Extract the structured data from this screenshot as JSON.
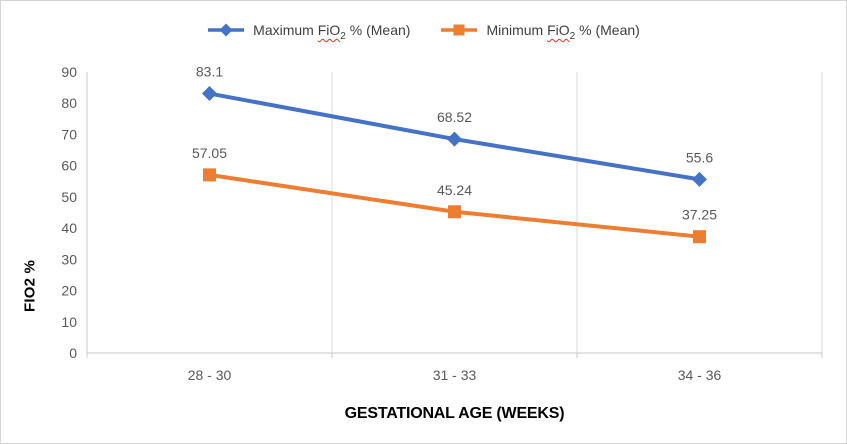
{
  "chart_data": {
    "type": "line",
    "title": "",
    "categories": [
      "28 - 30",
      "31 - 33",
      "34 - 36"
    ],
    "series": [
      {
        "name": "Maximum FiO₂ % (Mean)",
        "color": "#4472C4",
        "marker": "diamond",
        "values": [
          83.1,
          68.52,
          55.6
        ]
      },
      {
        "name": "Minimum FiO₂ % (Mean)",
        "color": "#ED7D31",
        "marker": "square",
        "values": [
          57.05,
          45.24,
          37.25
        ]
      }
    ],
    "xlabel": "GESTATIONAL AGE (WEEKS)",
    "ylabel": "FIO2 %",
    "ylim": [
      0,
      90
    ],
    "ytick_step": 10,
    "yticks": [
      0,
      10,
      20,
      30,
      40,
      50,
      60,
      70,
      80,
      90
    ],
    "grid": "vertical category separators only, no horizontal gridlines",
    "legend_position": "top center",
    "data_labels_position": "above points"
  },
  "legend": {
    "items": [
      {
        "pre": "Maximum ",
        "term": "FiO",
        "sub": "2",
        "post": " % (Mean)",
        "marker": "diamond",
        "color": "#4472C4"
      },
      {
        "pre": "Minimum ",
        "term": "FiO",
        "sub": "2",
        "post": " % (Mean)",
        "marker": "square",
        "color": "#ED7D31"
      }
    ]
  },
  "colors": {
    "series_maximum": "#4472C4",
    "series_minimum": "#ED7D31",
    "gridline": "#D9D9D9",
    "axis_line": "#C9C9C9",
    "tick_label": "#595959",
    "data_label": "#595959",
    "legend_text": "#404040",
    "axis_title": "#000000",
    "spellcheck_underline": "#E0321E",
    "chart_border": "#D5D5D5",
    "background": "#FFFFFF"
  }
}
